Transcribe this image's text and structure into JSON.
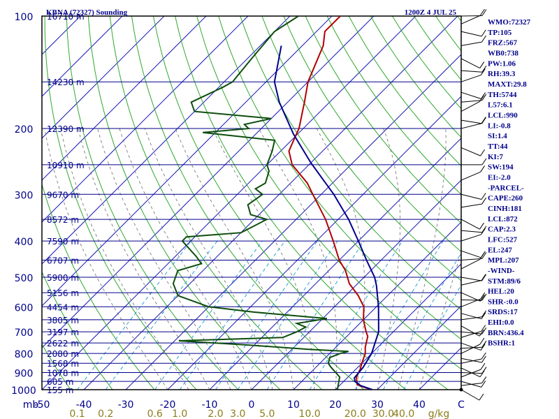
{
  "header": {
    "station": "KBNA (72327) Sounding",
    "time": "1200Z  4 JUL 25"
  },
  "indices": [
    "WMO:72327",
    "TP:105",
    "FRZ:567",
    "WB0:738",
    "PW:1.06",
    "RH:39.3",
    "MAXT:29.8",
    "TH:5744",
    "L57:6.1",
    "LCL:990",
    "LI:-0.8",
    "SI:1.4",
    "TT:44",
    "KI:7",
    "SW:194",
    "EI:-2.0",
    "-PARCEL-",
    "CAPE:260",
    "CINH:181",
    "LCL:872",
    "CAP:2.3",
    "LFC:527",
    "EL:247",
    "MPL:207",
    "-WIND-",
    "STM:89/6",
    "HEL:20",
    "SHR-:0.0",
    "SRDS:17",
    "EHI:0.0",
    "BRN:436.4",
    "BSHR:1"
  ],
  "chart_data": {
    "type": "line",
    "diagram": "skew-T log-P",
    "y_axis": {
      "unit_label": "mb",
      "range": [
        1000,
        100
      ],
      "scale": "log",
      "ticks": [
        1000,
        900,
        800,
        700,
        600,
        500,
        400,
        300,
        200,
        100
      ]
    },
    "x_axis": {
      "range": [
        -50,
        50
      ],
      "ticks": [
        "-50",
        "-40",
        "-30",
        "-20",
        "-10",
        "0",
        "10",
        "20",
        "30",
        "40",
        "C"
      ]
    },
    "mixing_ratio_axis": {
      "unit_label": "g/kg",
      "ticks": [
        "0.1",
        "0.2",
        "0.6",
        "1.0",
        "2.0",
        "3.0",
        "5.0",
        "10.0",
        "20.0",
        "30.0",
        "40.0"
      ]
    },
    "heights": [
      {
        "p": 100,
        "label": "16710 m"
      },
      {
        "p": 150,
        "label": "14230 m"
      },
      {
        "p": 200,
        "label": "12390 m"
      },
      {
        "p": 250,
        "label": "10910 m"
      },
      {
        "p": 300,
        "label": "9670 m"
      },
      {
        "p": 350,
        "label": "8572 m"
      },
      {
        "p": 400,
        "label": "7590 m"
      },
      {
        "p": 450,
        "label": "6707 m"
      },
      {
        "p": 500,
        "label": "5900 m"
      },
      {
        "p": 550,
        "label": "5156 m"
      },
      {
        "p": 600,
        "label": "4454 m"
      },
      {
        "p": 650,
        "label": "3805 m"
      },
      {
        "p": 700,
        "label": "3197 m"
      },
      {
        "p": 750,
        "label": "2622 m"
      },
      {
        "p": 800,
        "label": "2080 m"
      },
      {
        "p": 850,
        "label": "1568 m"
      },
      {
        "p": 900,
        "label": "1078 m"
      },
      {
        "p": 950,
        "label": "605 m"
      },
      {
        "p": 1000,
        "label": "155 m"
      }
    ],
    "series": [
      {
        "color": "#b00000",
        "points": [
          [
            1000,
            28.8
          ],
          [
            990,
            27
          ],
          [
            970,
            24
          ],
          [
            925,
            22
          ],
          [
            880,
            21
          ],
          [
            850,
            20
          ],
          [
            800,
            18.5
          ],
          [
            770,
            17
          ],
          [
            720,
            15
          ],
          [
            700,
            13.5
          ],
          [
            650,
            10
          ],
          [
            600,
            7
          ],
          [
            560,
            3
          ],
          [
            520,
            -2
          ],
          [
            480,
            -6
          ],
          [
            450,
            -10
          ],
          [
            400,
            -16
          ],
          [
            350,
            -23
          ],
          [
            300,
            -32
          ],
          [
            280,
            -36
          ],
          [
            250,
            -44
          ],
          [
            230,
            -48
          ],
          [
            210,
            -50
          ],
          [
            200,
            -51
          ],
          [
            170,
            -56
          ],
          [
            150,
            -60
          ],
          [
            120,
            -65
          ],
          [
            110,
            -68
          ],
          [
            100,
            -68
          ]
        ]
      },
      {
        "color": "#0d4d0d",
        "points": [
          [
            1000,
            20.5
          ],
          [
            970,
            19.5
          ],
          [
            925,
            18
          ],
          [
            900,
            16
          ],
          [
            870,
            13.5
          ],
          [
            850,
            12
          ],
          [
            820,
            11
          ],
          [
            800,
            12.5
          ],
          [
            790,
            14
          ],
          [
            780,
            4
          ],
          [
            760,
            -11
          ],
          [
            740,
            -29
          ],
          [
            725,
            -5
          ],
          [
            700,
            -3
          ],
          [
            680,
            -2
          ],
          [
            665,
            -5
          ],
          [
            645,
            1
          ],
          [
            620,
            -18
          ],
          [
            600,
            -30
          ],
          [
            560,
            -40
          ],
          [
            520,
            -44
          ],
          [
            480,
            -46
          ],
          [
            460,
            -42
          ],
          [
            440,
            -45
          ],
          [
            400,
            -52
          ],
          [
            390,
            -52
          ],
          [
            380,
            -40
          ],
          [
            370,
            -39
          ],
          [
            350,
            -37
          ],
          [
            340,
            -42
          ],
          [
            320,
            -45
          ],
          [
            300,
            -44
          ],
          [
            290,
            -47
          ],
          [
            280,
            -46
          ],
          [
            260,
            -48
          ],
          [
            250,
            -50
          ],
          [
            230,
            -52
          ],
          [
            215,
            -54
          ],
          [
            205,
            -73
          ],
          [
            200,
            -63
          ],
          [
            195,
            -65
          ],
          [
            188,
            -60
          ],
          [
            180,
            -80
          ],
          [
            170,
            -83
          ],
          [
            155,
            -79
          ],
          [
            150,
            -78
          ],
          [
            130,
            -79
          ],
          [
            110,
            -80
          ],
          [
            100,
            -78
          ]
        ]
      },
      {
        "color": "#00008b",
        "points": [
          [
            1000,
            28.8
          ],
          [
            975,
            25
          ],
          [
            950,
            22.7
          ],
          [
            930,
            21.7
          ],
          [
            872,
            21.3
          ],
          [
            800,
            20
          ],
          [
            700,
            16.5
          ],
          [
            600,
            10.5
          ],
          [
            527,
            5
          ],
          [
            500,
            2.5
          ],
          [
            450,
            -3.5
          ],
          [
            400,
            -10
          ],
          [
            350,
            -17.5
          ],
          [
            300,
            -27
          ],
          [
            247,
            -40
          ],
          [
            207,
            -51
          ],
          [
            170,
            -62
          ],
          [
            150,
            -68
          ],
          [
            120,
            -75
          ]
        ]
      }
    ],
    "wind_barbs_levels": [
      1000,
      975,
      950,
      925,
      900,
      875,
      850,
      825,
      800,
      775,
      750,
      725,
      700,
      675,
      650,
      625,
      600,
      575,
      550,
      525,
      500,
      475,
      450,
      425,
      400,
      375,
      350,
      325,
      300,
      275,
      250,
      225,
      200,
      190,
      180,
      170,
      160,
      150,
      140,
      130,
      120,
      110,
      105,
      100
    ]
  },
  "colors": {
    "frame": "#000000",
    "isobar": "#00008b",
    "isotherm": "#1a1ab8",
    "dry_adiabat": "#2ea82e",
    "moist_adiabat": "#6a6a6a",
    "mixing_ratio": "#2aa0d8",
    "mixing_label": "#8b7d1a",
    "height_label": "#00008b",
    "wind": "#000000",
    "index_text": "#00008b",
    "header_text": "#00008b"
  }
}
